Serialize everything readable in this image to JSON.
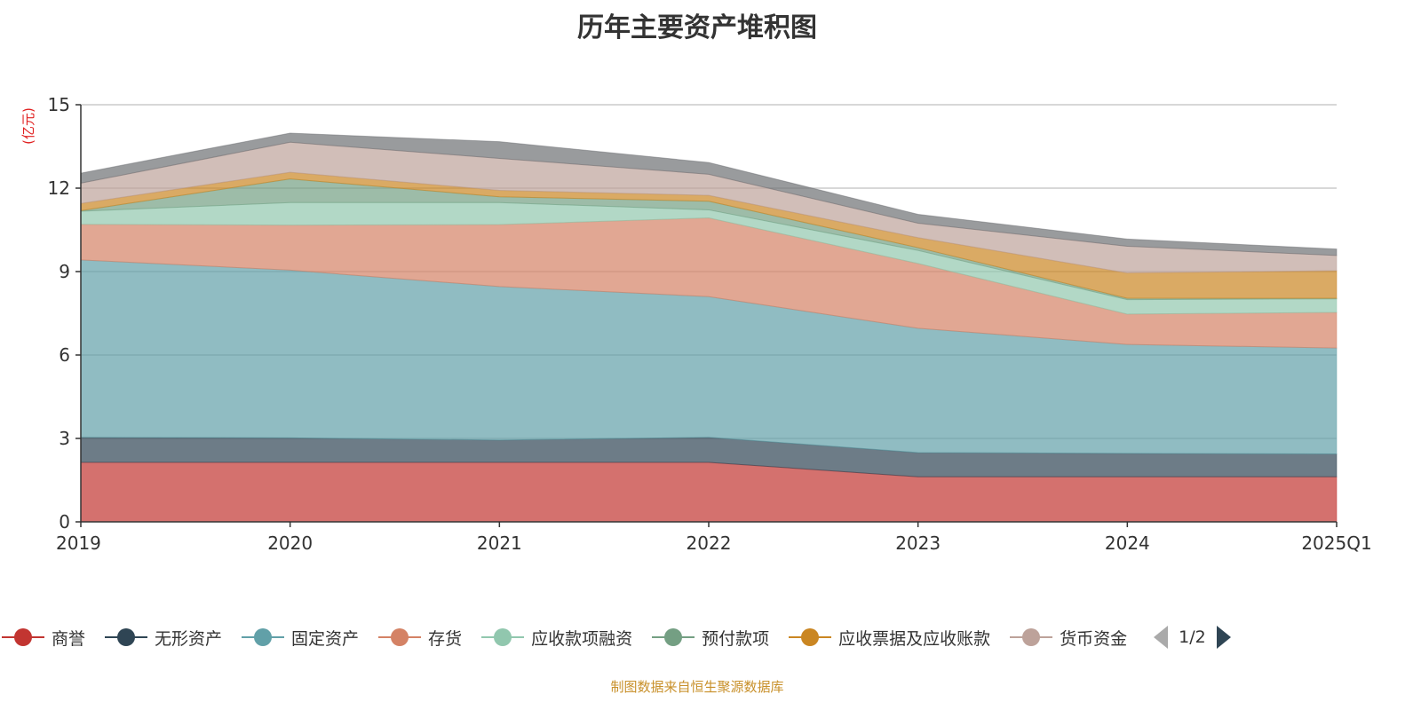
{
  "title": "历年主要资产堆积图",
  "footer": "制图数据来自恒生聚源数据库",
  "legend_pager": {
    "text": "1/2"
  },
  "chart_data": {
    "type": "area",
    "stacked": true,
    "title": "历年主要资产堆积图",
    "ylabel": "(亿元)",
    "xlabel": "",
    "ylim": [
      0,
      15
    ],
    "yticks": [
      0,
      3,
      6,
      9,
      12,
      15
    ],
    "grid": true,
    "legend_position": "bottom",
    "categories": [
      "2019",
      "2020",
      "2021",
      "2022",
      "2023",
      "2024",
      "2025Q1"
    ],
    "series": [
      {
        "name": "商誉",
        "color": "#c23531",
        "values": [
          2.14,
          2.14,
          2.14,
          2.14,
          1.62,
          1.62,
          1.62
        ]
      },
      {
        "name": "无形资产",
        "color": "#2f4554",
        "values": [
          0.9,
          0.88,
          0.8,
          0.9,
          0.87,
          0.84,
          0.82
        ]
      },
      {
        "name": "固定资产",
        "color": "#61a0a8",
        "values": [
          6.38,
          6.03,
          5.52,
          5.06,
          4.47,
          3.92,
          3.81
        ]
      },
      {
        "name": "存货",
        "color": "#d48265",
        "values": [
          1.28,
          1.62,
          2.23,
          2.83,
          2.33,
          1.09,
          1.28
        ]
      },
      {
        "name": "应收款项融资",
        "color": "#91c7ae",
        "values": [
          0.47,
          0.81,
          0.79,
          0.29,
          0.47,
          0.52,
          0.49
        ]
      },
      {
        "name": "预付款项",
        "color": "#749f83",
        "values": [
          0.02,
          0.85,
          0.21,
          0.31,
          0.1,
          0.05,
          0.02
        ]
      },
      {
        "name": "应收票据及应收账款",
        "color": "#ca8622",
        "values": [
          0.26,
          0.24,
          0.23,
          0.21,
          0.36,
          0.91,
          0.99
        ]
      },
      {
        "name": "货币资金",
        "color": "#bda29a",
        "values": [
          0.73,
          1.08,
          1.15,
          0.76,
          0.52,
          0.96,
          0.55
        ]
      },
      {
        "name": "",
        "color": "#6e7074",
        "values": [
          0.36,
          0.33,
          0.6,
          0.42,
          0.32,
          0.26,
          0.23
        ],
        "legend_page": 2
      }
    ]
  }
}
